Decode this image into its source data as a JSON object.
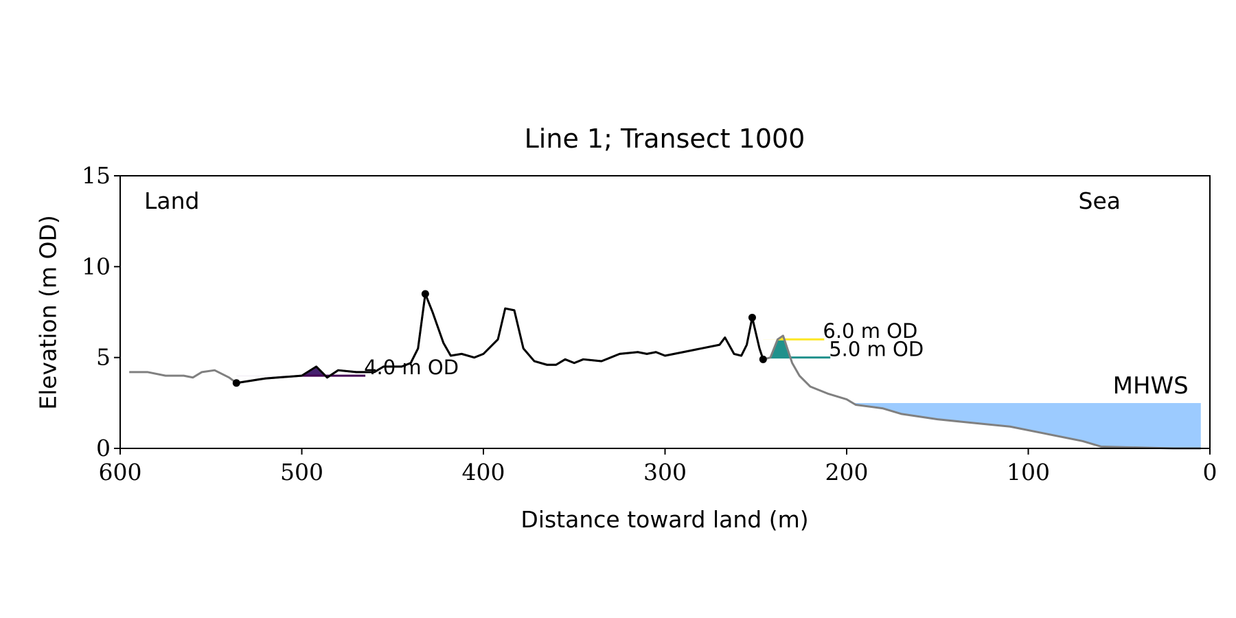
{
  "chart_data": {
    "type": "line",
    "title": "Line 1; Transect 1000",
    "x_label": "Distance toward land (m)",
    "y_label": "Elevation (m OD)",
    "annotations": {
      "left": "Land",
      "right": "Sea"
    },
    "xlim": [
      600,
      0
    ],
    "ylim": [
      0,
      15
    ],
    "xticks": [
      600,
      500,
      400,
      300,
      200,
      100,
      0
    ],
    "yticks": [
      0,
      5,
      10,
      15
    ],
    "series": [
      {
        "name": "Profile",
        "color": "#808080",
        "highlight_color": "#000000",
        "x": [
          595,
          585,
          575,
          565,
          560,
          555,
          548,
          540,
          536,
          520,
          500,
          492,
          486,
          480,
          470,
          460,
          455,
          445,
          440,
          436,
          432,
          428,
          422,
          418,
          412,
          405,
          400,
          392,
          388,
          383,
          378,
          372,
          365,
          360,
          355,
          350,
          345,
          335,
          325,
          315,
          310,
          305,
          300,
          290,
          280,
          270,
          267,
          262,
          258,
          255,
          252,
          248,
          246,
          242,
          238,
          235,
          230,
          226,
          220,
          210,
          200,
          195,
          180,
          170,
          150,
          130,
          110,
          90,
          70,
          60,
          40,
          20,
          5
        ],
        "values": [
          4.2,
          4.2,
          4.0,
          4.0,
          3.9,
          4.2,
          4.3,
          3.9,
          3.6,
          3.85,
          4.0,
          4.5,
          3.9,
          4.3,
          4.2,
          4.2,
          4.5,
          4.5,
          4.7,
          5.5,
          8.5,
          7.5,
          5.8,
          5.1,
          5.2,
          5.0,
          5.2,
          6.0,
          7.7,
          7.6,
          5.5,
          4.8,
          4.6,
          4.6,
          4.9,
          4.7,
          4.9,
          4.8,
          5.2,
          5.3,
          5.2,
          5.3,
          5.1,
          5.3,
          5.5,
          5.7,
          6.1,
          5.2,
          5.1,
          5.7,
          7.2,
          5.5,
          4.9,
          5.0,
          6.0,
          6.2,
          4.7,
          4.0,
          3.4,
          3.0,
          2.7,
          2.4,
          2.2,
          1.9,
          1.6,
          1.4,
          1.2,
          0.8,
          0.4,
          0.1,
          0.05,
          0,
          0
        ]
      }
    ],
    "markers": {
      "color": "#000000",
      "x": [
        536,
        432,
        252,
        246
      ],
      "y": [
        3.6,
        8.5,
        7.2,
        4.9
      ]
    },
    "levels": [
      {
        "value": 4.0,
        "label": "4.0 m OD",
        "color": "#440154",
        "fill": "#46216f"
      },
      {
        "value": 5.0,
        "label": "5.0 m OD",
        "color": "#21918c",
        "fill": "#21918c"
      },
      {
        "value": 6.0,
        "label": "6.0 m OD",
        "color": "#fde725",
        "fill": "#fde725"
      }
    ],
    "mhws": {
      "value": 2.5,
      "label": "MHWS",
      "color": "#9ccbff",
      "label_color": "#6b9bcc"
    },
    "below_fill": "#d3d3d3"
  }
}
